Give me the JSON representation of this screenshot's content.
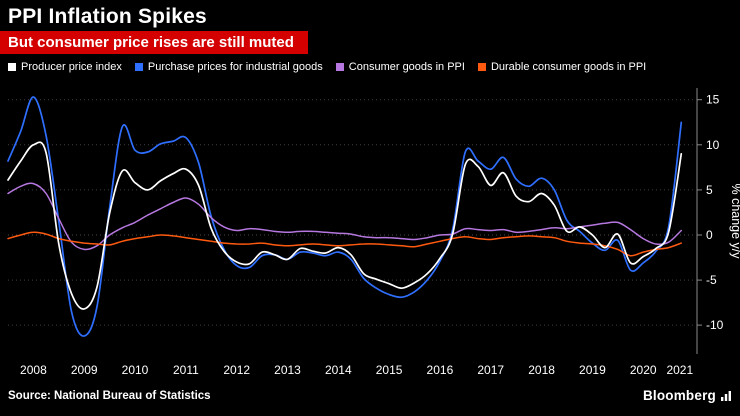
{
  "header": {
    "title": "PPI Inflation Spikes",
    "subtitle": "But consumer price rises are still muted"
  },
  "footer": {
    "source": "Source: National Bureau of Statistics",
    "brand": "Bloomberg"
  },
  "colors": {
    "background": "#000000",
    "banner": "#d40000",
    "text": "#ffffff",
    "grid": "#3f3f3f",
    "grid_zero": "#4a4a4a",
    "axis": "#8a8a8a"
  },
  "chart_data": {
    "type": "line",
    "title": "PPI Inflation Spikes",
    "subtitle": "But consumer price rises are still muted",
    "xlabel": "",
    "ylabel": "% change y/y",
    "ylim": [
      -13.2,
      16.3
    ],
    "xlim": [
      2008.0,
      2021.5
    ],
    "y_ticks": [
      15,
      10,
      5,
      0,
      -5,
      -10
    ],
    "grid": "horizontal-dotted",
    "legend_position": "top",
    "x_ticks": [
      {
        "label": "2008",
        "pos": 2008.5
      },
      {
        "label": "2009",
        "pos": 2009.5
      },
      {
        "label": "2010",
        "pos": 2010.5
      },
      {
        "label": "2011",
        "pos": 2011.5
      },
      {
        "label": "2012",
        "pos": 2012.5
      },
      {
        "label": "2013",
        "pos": 2013.5
      },
      {
        "label": "2014",
        "pos": 2014.5
      },
      {
        "label": "2015",
        "pos": 2015.5
      },
      {
        "label": "2016",
        "pos": 2016.5
      },
      {
        "label": "2017",
        "pos": 2017.5
      },
      {
        "label": "2018",
        "pos": 2018.5
      },
      {
        "label": "2019",
        "pos": 2019.5
      },
      {
        "label": "2020",
        "pos": 2020.5
      },
      {
        "label": "2021",
        "pos": 2021.22
      }
    ],
    "x": [
      2008.0,
      2008.25,
      2008.5,
      2008.75,
      2009.0,
      2009.25,
      2009.5,
      2009.75,
      2010.0,
      2010.25,
      2010.5,
      2010.75,
      2011.0,
      2011.25,
      2011.5,
      2011.75,
      2012.0,
      2012.25,
      2012.5,
      2012.75,
      2013.0,
      2013.25,
      2013.5,
      2013.75,
      2014.0,
      2014.25,
      2014.5,
      2014.75,
      2015.0,
      2015.25,
      2015.5,
      2015.75,
      2016.0,
      2016.25,
      2016.5,
      2016.75,
      2017.0,
      2017.25,
      2017.5,
      2017.75,
      2018.0,
      2018.25,
      2018.5,
      2018.75,
      2019.0,
      2019.25,
      2019.5,
      2019.75,
      2020.0,
      2020.25,
      2020.5,
      2020.75,
      2021.0,
      2021.25
    ],
    "series": [
      {
        "name": "Producer price index",
        "color": "#ffffff",
        "values": [
          6.1,
          8.2,
          10.0,
          9.1,
          -1.0,
          -6.5,
          -8.2,
          -5.8,
          2.4,
          7.1,
          5.8,
          5.0,
          6.0,
          6.8,
          7.3,
          5.5,
          0.7,
          -1.8,
          -3.0,
          -3.2,
          -1.9,
          -2.2,
          -2.7,
          -1.5,
          -1.8,
          -2.0,
          -1.4,
          -2.2,
          -4.3,
          -4.9,
          -5.4,
          -5.9,
          -5.3,
          -4.3,
          -2.6,
          0.1,
          7.8,
          7.6,
          5.5,
          6.9,
          4.3,
          3.7,
          4.6,
          3.3,
          0.4,
          0.9,
          0.0,
          -1.4,
          0.1,
          -3.1,
          -2.4,
          -1.5,
          0.3,
          9.0
        ]
      },
      {
        "name": "Purchase prices for industrial goods",
        "color": "#2f6fff",
        "values": [
          8.2,
          11.5,
          15.3,
          11.0,
          1.5,
          -8.5,
          -11.2,
          -8.0,
          3.0,
          12.0,
          9.4,
          9.2,
          10.1,
          10.4,
          10.8,
          8.0,
          2.0,
          -1.6,
          -3.4,
          -3.6,
          -2.3,
          -2.2,
          -2.7,
          -1.9,
          -2.0,
          -2.3,
          -1.9,
          -2.7,
          -4.8,
          -5.9,
          -6.6,
          -6.9,
          -6.3,
          -5.0,
          -2.9,
          0.6,
          9.2,
          8.2,
          7.3,
          8.6,
          6.2,
          5.4,
          6.3,
          5.0,
          1.6,
          0.4,
          -0.9,
          -1.7,
          -0.6,
          -3.9,
          -3.1,
          -1.8,
          0.9,
          12.5
        ]
      },
      {
        "name": "Consumer goods in PPI",
        "color": "#b678e0",
        "values": [
          4.6,
          5.4,
          5.7,
          4.6,
          1.8,
          -0.8,
          -1.6,
          -1.2,
          0.0,
          0.8,
          1.4,
          2.2,
          2.9,
          3.6,
          4.1,
          3.4,
          1.9,
          0.9,
          0.5,
          0.7,
          0.6,
          0.4,
          0.3,
          0.4,
          0.4,
          0.3,
          0.2,
          0.1,
          -0.2,
          -0.3,
          -0.3,
          -0.4,
          -0.5,
          -0.3,
          0.0,
          0.1,
          0.7,
          0.6,
          0.5,
          0.6,
          0.3,
          0.4,
          0.6,
          0.8,
          0.7,
          0.9,
          1.1,
          1.3,
          1.4,
          0.6,
          -0.4,
          -1.0,
          -0.8,
          0.5
        ]
      },
      {
        "name": "Durable consumer goods in PPI",
        "color": "#ff5a0f",
        "values": [
          -0.4,
          0.0,
          0.3,
          0.1,
          -0.4,
          -0.7,
          -0.9,
          -1.0,
          -1.1,
          -0.7,
          -0.4,
          -0.2,
          0.0,
          -0.1,
          -0.3,
          -0.5,
          -0.7,
          -0.9,
          -1.0,
          -1.0,
          -0.9,
          -1.1,
          -1.2,
          -1.1,
          -1.0,
          -1.1,
          -1.2,
          -1.1,
          -1.0,
          -1.0,
          -1.1,
          -1.2,
          -1.3,
          -1.0,
          -0.7,
          -0.4,
          -0.2,
          -0.4,
          -0.5,
          -0.3,
          -0.2,
          -0.1,
          -0.2,
          -0.3,
          -0.7,
          -0.9,
          -1.0,
          -1.2,
          -1.6,
          -2.3,
          -1.9,
          -1.6,
          -1.4,
          -0.9
        ]
      }
    ]
  }
}
